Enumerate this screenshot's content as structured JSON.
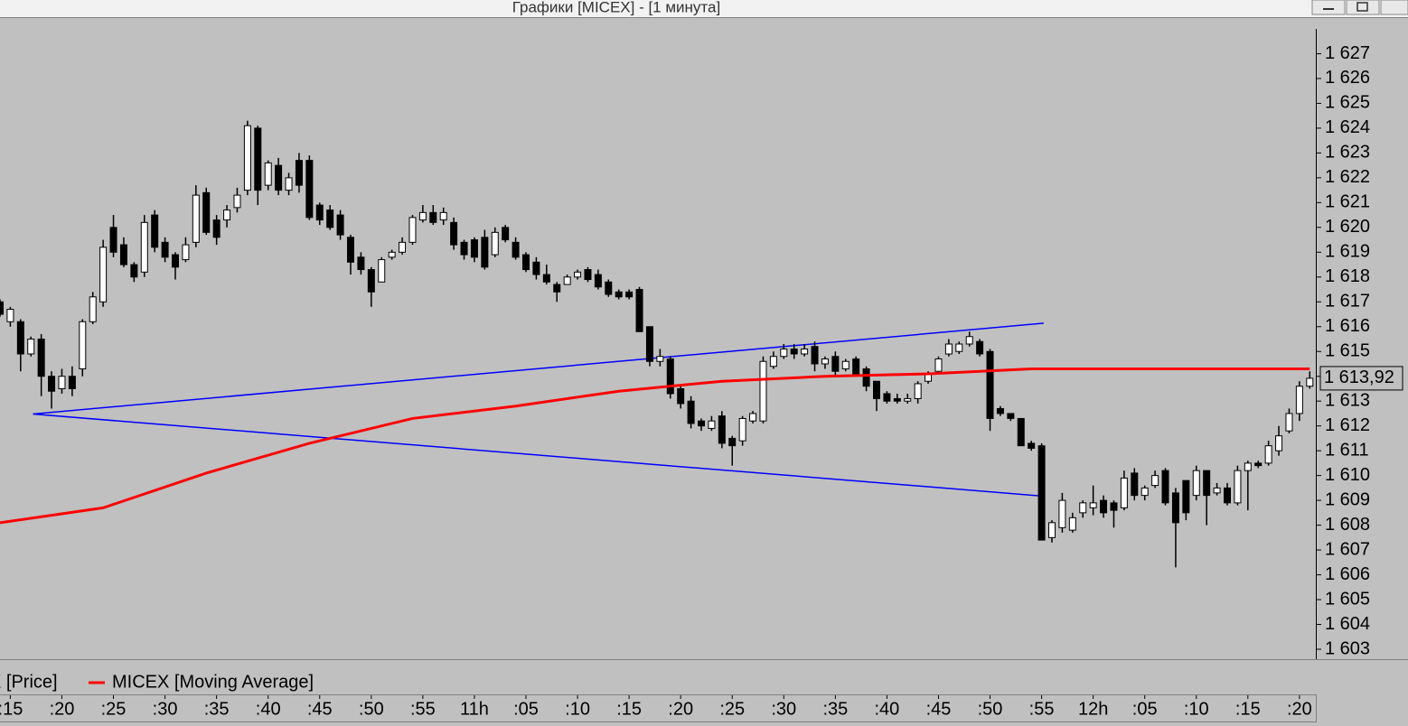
{
  "window": {
    "title": "Графики [MICEX] - [1 минута]"
  },
  "chart_data": {
    "type": "candlestick",
    "xlim": [
      14,
      141.5
    ],
    "ylim": [
      1602.6,
      1628.0
    ],
    "xticks": [
      {
        "value": 15,
        "label": ":15"
      },
      {
        "value": 20,
        "label": ":20"
      },
      {
        "value": 25,
        "label": ":25"
      },
      {
        "value": 30,
        "label": ":30"
      },
      {
        "value": 35,
        "label": ":35"
      },
      {
        "value": 40,
        "label": ":40"
      },
      {
        "value": 45,
        "label": ":45"
      },
      {
        "value": 50,
        "label": ":50"
      },
      {
        "value": 55,
        "label": ":55"
      },
      {
        "value": 60,
        "label": "11h"
      },
      {
        "value": 65,
        "label": ":05"
      },
      {
        "value": 70,
        "label": ":10"
      },
      {
        "value": 75,
        "label": ":15"
      },
      {
        "value": 80,
        "label": ":20"
      },
      {
        "value": 85,
        "label": ":25"
      },
      {
        "value": 90,
        "label": ":30"
      },
      {
        "value": 95,
        "label": ":35"
      },
      {
        "value": 100,
        "label": ":40"
      },
      {
        "value": 105,
        "label": ":45"
      },
      {
        "value": 110,
        "label": ":50"
      },
      {
        "value": 115,
        "label": ":55"
      },
      {
        "value": 120,
        "label": "12h"
      },
      {
        "value": 125,
        "label": ":05"
      },
      {
        "value": 130,
        "label": ":10"
      },
      {
        "value": 135,
        "label": ":15"
      },
      {
        "value": 140,
        "label": ":20"
      }
    ],
    "yticks": [
      {
        "value": 1603,
        "label": "1 603"
      },
      {
        "value": 1604,
        "label": "1 604"
      },
      {
        "value": 1605,
        "label": "1 605"
      },
      {
        "value": 1606,
        "label": "1 606"
      },
      {
        "value": 1607,
        "label": "1 607"
      },
      {
        "value": 1608,
        "label": "1 608"
      },
      {
        "value": 1609,
        "label": "1 609"
      },
      {
        "value": 1610,
        "label": "1 610"
      },
      {
        "value": 1611,
        "label": "1 611"
      },
      {
        "value": 1612,
        "label": "1 612"
      },
      {
        "value": 1613,
        "label": "1 613"
      },
      {
        "value": 1614,
        "label": "1 614"
      },
      {
        "value": 1615,
        "label": "1 615"
      },
      {
        "value": 1616,
        "label": "1 616"
      },
      {
        "value": 1617,
        "label": "1 617"
      },
      {
        "value": 1618,
        "label": "1 618"
      },
      {
        "value": 1619,
        "label": "1 619"
      },
      {
        "value": 1620,
        "label": "1 620"
      },
      {
        "value": 1621,
        "label": "1 621"
      },
      {
        "value": 1622,
        "label": "1 622"
      },
      {
        "value": 1623,
        "label": "1 623"
      },
      {
        "value": 1624,
        "label": "1 624"
      },
      {
        "value": 1625,
        "label": "1 625"
      },
      {
        "value": 1626,
        "label": "1 626"
      },
      {
        "value": 1627,
        "label": "1 627"
      }
    ],
    "last_price": {
      "value": 1613.92,
      "label": "1 613,92"
    },
    "series": [
      {
        "name": "MICEX [Price]",
        "up_color": "#ffffff",
        "down_color": "#000000",
        "x": [
          14,
          15,
          16,
          17,
          18,
          19,
          20,
          21,
          22,
          23,
          24,
          25,
          26,
          27,
          28,
          29,
          30,
          31,
          32,
          33,
          34,
          35,
          36,
          37,
          38,
          39,
          40,
          41,
          42,
          43,
          44,
          45,
          46,
          47,
          48,
          49,
          50,
          51,
          52,
          53,
          54,
          55,
          56,
          57,
          58,
          59,
          60,
          61,
          62,
          63,
          64,
          65,
          66,
          67,
          68,
          69,
          70,
          71,
          72,
          73,
          74,
          75,
          76,
          77,
          78,
          79,
          80,
          81,
          82,
          83,
          84,
          85,
          86,
          87,
          88,
          89,
          90,
          91,
          92,
          93,
          94,
          95,
          96,
          97,
          98,
          99,
          100,
          101,
          102,
          103,
          104,
          105,
          106,
          107,
          108,
          109,
          110,
          111,
          112,
          113,
          114,
          115,
          116,
          117,
          118,
          119,
          120,
          121,
          122,
          123,
          124,
          125,
          126,
          127,
          128,
          129,
          130,
          131,
          132,
          133,
          134,
          135,
          136,
          137,
          138,
          139,
          140,
          141
        ],
        "open": [
          1617.0,
          1616.2,
          1616.2,
          1614.9,
          1615.5,
          1614.0,
          1613.5,
          1614.0,
          1614.3,
          1616.2,
          1617.0,
          1620.0,
          1619.3,
          1618.5,
          1618.2,
          1620.5,
          1619.4,
          1618.9,
          1618.7,
          1619.4,
          1621.4,
          1620.3,
          1620.3,
          1620.8,
          1621.5,
          1624.0,
          1621.7,
          1622.5,
          1621.5,
          1622.7,
          1622.7,
          1620.9,
          1620.7,
          1620.5,
          1619.6,
          1618.8,
          1618.3,
          1617.8,
          1618.8,
          1619.0,
          1619.4,
          1620.3,
          1620.6,
          1620.3,
          1620.2,
          1619.4,
          1619.5,
          1619.6,
          1618.9,
          1620.0,
          1619.4,
          1618.9,
          1618.6,
          1618.1,
          1617.7,
          1617.7,
          1618.0,
          1618.3,
          1618.1,
          1617.8,
          1617.4,
          1617.4,
          1617.5,
          1616.0,
          1614.6,
          1614.7,
          1613.5,
          1613.0,
          1612.2,
          1611.9,
          1612.4,
          1611.5,
          1611.4,
          1612.2,
          1612.2,
          1614.4,
          1614.8,
          1615.1,
          1614.9,
          1615.2,
          1614.5,
          1614.8,
          1614.3,
          1614.7,
          1614.3,
          1613.8,
          1613.3,
          1613.1,
          1613.0,
          1613.1,
          1613.8,
          1614.2,
          1614.9,
          1615.0,
          1615.3,
          1615.4,
          1615.0,
          1612.7,
          1612.5,
          1612.3,
          1611.3,
          1611.2,
          1607.5,
          1607.9,
          1607.8,
          1608.5,
          1608.7,
          1609.0,
          1608.9,
          1608.7,
          1610.1,
          1609.2,
          1609.6,
          1610.2,
          1609.3,
          1609.8,
          1609.2,
          1610.2,
          1609.3,
          1609.5,
          1608.9,
          1610.2,
          1610.5,
          1610.5,
          1611.0,
          1611.8,
          1612.5,
          1613.6
        ],
        "high": [
          1617.1,
          1616.8,
          1616.3,
          1615.6,
          1615.7,
          1614.2,
          1614.3,
          1614.4,
          1616.3,
          1617.4,
          1619.5,
          1620.5,
          1619.6,
          1618.6,
          1620.5,
          1620.7,
          1619.6,
          1619.0,
          1619.6,
          1621.7,
          1621.6,
          1620.5,
          1620.9,
          1621.6,
          1624.3,
          1624.1,
          1622.7,
          1622.8,
          1622.2,
          1623.0,
          1622.9,
          1621.0,
          1620.9,
          1620.7,
          1619.7,
          1619.0,
          1618.4,
          1618.8,
          1619.1,
          1619.6,
          1620.5,
          1620.9,
          1620.9,
          1620.8,
          1620.4,
          1619.5,
          1619.6,
          1619.9,
          1620.0,
          1620.1,
          1619.6,
          1619.0,
          1618.8,
          1618.5,
          1617.8,
          1618.1,
          1618.3,
          1618.4,
          1618.3,
          1617.9,
          1617.5,
          1617.5,
          1617.6,
          1616.0,
          1615.1,
          1614.8,
          1613.6,
          1613.2,
          1612.3,
          1612.4,
          1612.6,
          1611.6,
          1612.4,
          1612.6,
          1614.8,
          1615.0,
          1615.3,
          1615.3,
          1615.3,
          1615.4,
          1614.8,
          1615.0,
          1614.7,
          1614.8,
          1614.4,
          1613.8,
          1613.4,
          1613.3,
          1613.3,
          1613.8,
          1614.2,
          1614.8,
          1615.5,
          1615.4,
          1615.8,
          1615.5,
          1615.1,
          1612.8,
          1612.5,
          1612.3,
          1611.4,
          1611.3,
          1608.2,
          1609.3,
          1608.5,
          1609.0,
          1609.6,
          1609.2,
          1609.0,
          1610.2,
          1610.3,
          1609.6,
          1610.2,
          1610.3,
          1609.5,
          1609.8,
          1610.4,
          1610.2,
          1609.7,
          1609.7,
          1610.4,
          1610.6,
          1610.6,
          1611.4,
          1612.0,
          1612.7,
          1613.8,
          1614.2
        ],
        "low": [
          1616.4,
          1616.0,
          1614.2,
          1614.8,
          1613.2,
          1612.7,
          1613.3,
          1613.2,
          1614.0,
          1616.1,
          1616.8,
          1618.8,
          1618.4,
          1617.8,
          1618.0,
          1619.0,
          1618.6,
          1617.9,
          1618.6,
          1619.2,
          1619.7,
          1619.3,
          1620.0,
          1620.6,
          1621.3,
          1620.9,
          1621.5,
          1621.3,
          1621.3,
          1621.4,
          1620.3,
          1620.1,
          1619.9,
          1619.5,
          1618.1,
          1618.1,
          1616.8,
          1617.8,
          1618.7,
          1618.9,
          1619.3,
          1620.2,
          1620.1,
          1620.1,
          1619.1,
          1618.7,
          1618.6,
          1618.3,
          1618.8,
          1619.4,
          1618.7,
          1618.2,
          1617.9,
          1617.7,
          1617.0,
          1617.7,
          1617.9,
          1617.8,
          1617.5,
          1617.2,
          1617.1,
          1617.1,
          1615.8,
          1614.4,
          1614.4,
          1613.1,
          1612.7,
          1611.9,
          1611.8,
          1611.8,
          1611.1,
          1610.4,
          1611.2,
          1612.1,
          1612.1,
          1614.3,
          1614.7,
          1614.7,
          1614.8,
          1614.2,
          1614.3,
          1614.0,
          1614.2,
          1614.0,
          1613.4,
          1612.6,
          1612.9,
          1612.9,
          1612.9,
          1612.9,
          1613.7,
          1614.1,
          1614.8,
          1614.9,
          1615.2,
          1614.8,
          1611.8,
          1612.4,
          1612.2,
          1611.2,
          1611.0,
          1607.4,
          1607.3,
          1607.7,
          1607.7,
          1608.3,
          1608.4,
          1608.3,
          1607.9,
          1608.6,
          1609.0,
          1609.0,
          1609.5,
          1608.8,
          1606.3,
          1608.2,
          1609.0,
          1608.0,
          1609.2,
          1608.8,
          1608.8,
          1608.6,
          1610.3,
          1610.4,
          1610.8,
          1611.7,
          1612.2,
          1613.5
        ],
        "close": [
          1616.5,
          1616.7,
          1614.9,
          1615.5,
          1614.0,
          1613.4,
          1614.0,
          1613.5,
          1616.2,
          1617.2,
          1619.2,
          1619.0,
          1618.5,
          1618.0,
          1620.2,
          1619.2,
          1618.8,
          1618.4,
          1619.3,
          1621.3,
          1619.8,
          1619.6,
          1620.7,
          1621.3,
          1624.1,
          1621.5,
          1622.6,
          1621.5,
          1622.0,
          1621.7,
          1620.4,
          1620.3,
          1620.0,
          1619.7,
          1618.6,
          1618.3,
          1617.4,
          1618.7,
          1619.0,
          1619.4,
          1620.4,
          1620.6,
          1620.2,
          1620.6,
          1619.3,
          1618.9,
          1618.8,
          1618.4,
          1619.8,
          1619.5,
          1618.8,
          1618.3,
          1618.1,
          1617.8,
          1617.4,
          1618.0,
          1618.2,
          1617.9,
          1617.6,
          1617.3,
          1617.2,
          1617.2,
          1615.8,
          1614.6,
          1614.8,
          1613.3,
          1612.9,
          1612.1,
          1612.0,
          1612.2,
          1611.3,
          1611.2,
          1612.3,
          1612.5,
          1614.6,
          1614.8,
          1615.1,
          1614.9,
          1615.1,
          1614.5,
          1614.7,
          1614.2,
          1614.6,
          1614.1,
          1613.6,
          1613.1,
          1613.0,
          1613.0,
          1613.1,
          1613.7,
          1614.1,
          1614.7,
          1615.3,
          1615.3,
          1615.6,
          1614.9,
          1612.3,
          1612.5,
          1612.3,
          1611.2,
          1611.1,
          1607.4,
          1608.1,
          1609.0,
          1608.3,
          1608.9,
          1608.9,
          1608.5,
          1608.6,
          1609.9,
          1609.2,
          1609.5,
          1610.0,
          1608.9,
          1608.1,
          1608.5,
          1610.2,
          1609.2,
          1609.5,
          1608.9,
          1610.2,
          1610.5,
          1610.4,
          1611.2,
          1611.6,
          1612.5,
          1613.6,
          1613.92
        ]
      },
      {
        "name": "MICEX [Moving Average]",
        "color": "#ff0000",
        "x": [
          14,
          24,
          34,
          44,
          54,
          64,
          74,
          84,
          94,
          104,
          114,
          124,
          134,
          141
        ],
        "values": [
          1608.1,
          1608.7,
          1610.1,
          1611.3,
          1612.3,
          1612.8,
          1613.4,
          1613.8,
          1614.0,
          1614.1,
          1614.3,
          1614.3,
          1614.3,
          1614.3
        ]
      }
    ],
    "trend_lines": [
      {
        "color": "#0000ff",
        "x": [
          17.2,
          115.2
        ],
        "values": [
          1612.48,
          1616.14
        ]
      },
      {
        "color": "#0000ff",
        "x": [
          17.2,
          115.2
        ],
        "values": [
          1612.48,
          1609.17
        ]
      }
    ]
  }
}
